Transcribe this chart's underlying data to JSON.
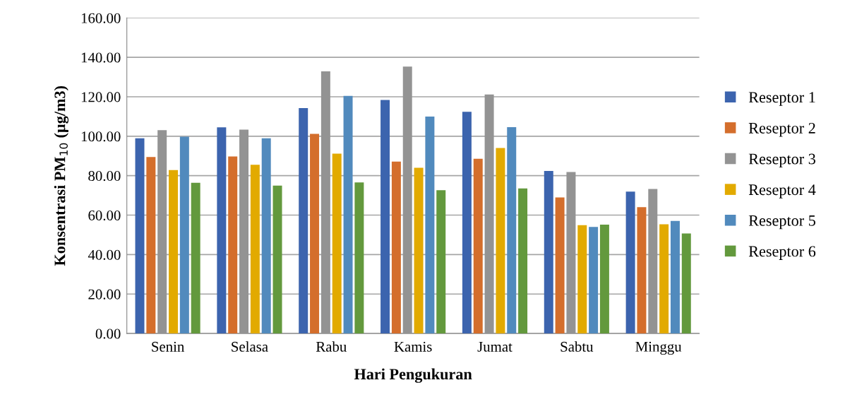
{
  "chart_data": {
    "type": "bar",
    "xlabel": "Hari Pengukuran",
    "ylabel": "Konsentrasi PM$_{10}$ (µg/m3)",
    "categories": [
      "Senin",
      "Selasa",
      "Rabu",
      "Kamis",
      "Jumat",
      "Sabtu",
      "Minggu"
    ],
    "series": [
      {
        "name": "Reseptor 1",
        "color": "#3c64ae",
        "values": [
          99.0,
          104.5,
          114.3,
          118.4,
          112.4,
          82.4,
          71.9
        ]
      },
      {
        "name": "Reseptor 2",
        "color": "#d46e2c",
        "values": [
          89.5,
          89.7,
          101.2,
          87.1,
          88.6,
          69.0,
          64.0
        ]
      },
      {
        "name": "Reseptor 3",
        "color": "#939393",
        "values": [
          103.1,
          103.3,
          132.9,
          135.3,
          121.2,
          81.9,
          73.3
        ]
      },
      {
        "name": "Reseptor 4",
        "color": "#e2aa00",
        "values": [
          82.8,
          85.5,
          91.2,
          84.0,
          94.0,
          54.9,
          55.4
        ]
      },
      {
        "name": "Reseptor 5",
        "color": "#518abd",
        "values": [
          99.8,
          99.0,
          120.4,
          110.0,
          104.6,
          54.0,
          57.1
        ]
      },
      {
        "name": "Reseptor 6",
        "color": "#63993d",
        "values": [
          76.4,
          75.0,
          76.6,
          72.6,
          73.5,
          55.2,
          50.7
        ]
      }
    ],
    "ylim": [
      0,
      160
    ],
    "yticks": [
      {
        "value": 0,
        "label": "0.00"
      },
      {
        "value": 20,
        "label": "20.00"
      },
      {
        "value": 40,
        "label": "40.00"
      },
      {
        "value": 60,
        "label": "60.00"
      },
      {
        "value": 80,
        "label": "80.00"
      },
      {
        "value": 100,
        "label": "100.00"
      },
      {
        "value": 120,
        "label": "120.00"
      },
      {
        "value": 140,
        "label": "140.00"
      },
      {
        "value": 160,
        "label": "160.00"
      }
    ],
    "grid": "y",
    "legend": "right"
  }
}
